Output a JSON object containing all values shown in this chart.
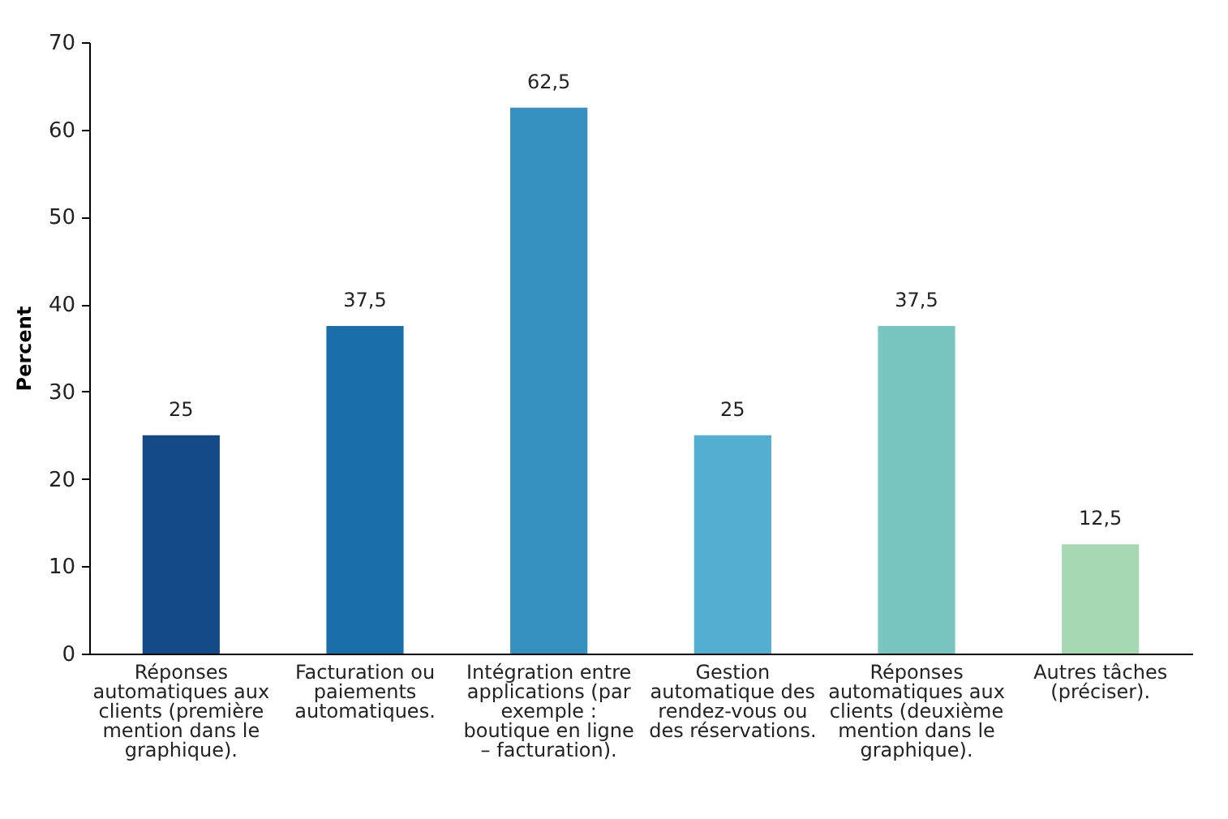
{
  "chart_data": {
    "type": "bar",
    "ylabel": "Percent",
    "categories": [
      "Réponses automatiques aux clients (première mention dans le graphique).",
      "Facturation ou paiements automatiques.",
      "Intégration entre applications (par exemple : boutique en ligne – facturation).",
      "Gestion automatique des rendez-vous ou des réservations.",
      "Réponses automatiques aux clients (deuxième mention dans le graphique).",
      "Autres tâches (préciser)."
    ],
    "values": [
      25,
      37.5,
      62.5,
      25,
      37.5,
      12.5
    ],
    "value_labels": [
      "25",
      "37,5",
      "62,5",
      "25",
      "37,5",
      "12,5"
    ],
    "colors": [
      "#144a87",
      "#1a6eaa",
      "#3690c0",
      "#54aed2",
      "#78c6bf",
      "#a6d9b3"
    ],
    "ylim": [
      0,
      70
    ],
    "yticks": [
      0,
      10,
      20,
      30,
      40,
      50,
      60,
      70
    ]
  }
}
